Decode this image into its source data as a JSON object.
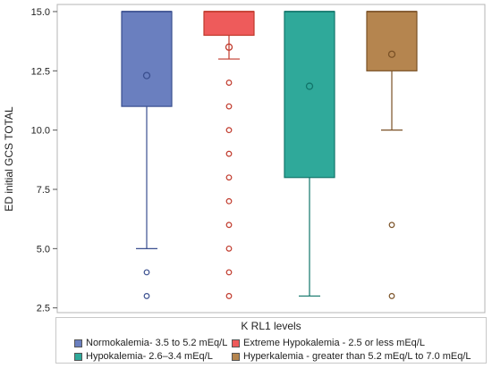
{
  "chart_data": {
    "type": "box",
    "ylabel": "ED initial GCS TOTAL",
    "ylim": [
      2.3,
      15.3
    ],
    "yticks": [
      2.5,
      5.0,
      7.5,
      10.0,
      12.5,
      15.0
    ],
    "ytick_labels": [
      "2.5",
      "5.0",
      "7.5",
      "10.0",
      "12.5",
      "15.0"
    ],
    "legend_title": "K RL1 levels",
    "series": [
      {
        "name": "Normokalemia- 3.5 to 5.2 mEq/L",
        "color": "#6a7fbf",
        "edge": "#3a4f8f",
        "q1": 11,
        "median": 15,
        "q3": 15,
        "whisker_low": 5,
        "whisker_high": 15,
        "mean": 12.3,
        "outliers": [
          4,
          3
        ]
      },
      {
        "name": "Extreme Hypokalemia - 2.5 or less mEq/L",
        "color": "#ee5b5b",
        "edge": "#c0392b",
        "q1": 14,
        "median": 15,
        "q3": 15,
        "whisker_low": 13,
        "whisker_high": 15,
        "mean": 13.5,
        "outliers": [
          12,
          11,
          10,
          9,
          8,
          7,
          6,
          5,
          4,
          3
        ]
      },
      {
        "name": "Hypokalemia-  2.6–3.4 mEq/L",
        "color": "#2fa99a",
        "edge": "#11756a",
        "q1": 8,
        "median": 15,
        "q3": 15,
        "whisker_low": 3,
        "whisker_high": 15,
        "mean": 11.85,
        "outliers": []
      },
      {
        "name": "Hyperkalemia - greater than 5.2 mEq/L to 7.0 mEq/L",
        "color": "#b5854f",
        "edge": "#7a5126",
        "q1": 12.5,
        "median": 15,
        "q3": 15,
        "whisker_low": 10,
        "whisker_high": 15,
        "mean": 13.2,
        "outliers": [
          6,
          3
        ]
      }
    ]
  }
}
